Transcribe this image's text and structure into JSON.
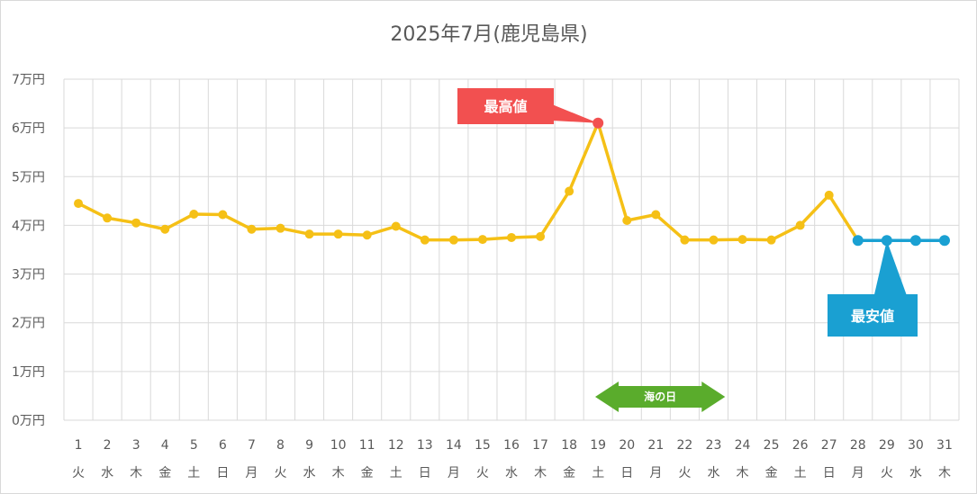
{
  "chart_data": {
    "type": "line",
    "title": "2025年7月(鹿児島県)",
    "xlabel": "",
    "ylabel": "",
    "x": [
      "1",
      "2",
      "3",
      "4",
      "5",
      "6",
      "7",
      "8",
      "9",
      "10",
      "11",
      "12",
      "13",
      "14",
      "15",
      "16",
      "17",
      "18",
      "19",
      "20",
      "21",
      "22",
      "23",
      "24",
      "25",
      "26",
      "27",
      "28",
      "29",
      "30",
      "31"
    ],
    "weekdays": [
      "火",
      "水",
      "木",
      "金",
      "土",
      "日",
      "月",
      "火",
      "水",
      "木",
      "金",
      "土",
      "日",
      "月",
      "火",
      "水",
      "木",
      "金",
      "土",
      "日",
      "月",
      "火",
      "水",
      "木",
      "金",
      "土",
      "日",
      "月",
      "火",
      "水",
      "木"
    ],
    "yticks": [
      "0万円",
      "1万円",
      "2万円",
      "3万円",
      "4万円",
      "5万円",
      "6万円",
      "7万円"
    ],
    "ylim": [
      0,
      70000
    ],
    "grid": true,
    "series": [
      {
        "values": [
          44500,
          41500,
          40500,
          39200,
          42300,
          42200,
          39200,
          39400,
          38200,
          38200,
          38000,
          39800,
          37000,
          37000,
          37100,
          37500,
          37700,
          47000,
          61000,
          41000,
          42200,
          37000,
          37000,
          37100,
          37000,
          40000,
          46200,
          36900,
          36900,
          36900,
          36900
        ],
        "color": "#f5c016",
        "min_color": "#1aa0d2"
      }
    ],
    "annotations": {
      "max_label": "最高値",
      "max_index": 18,
      "max_color": "#f25050",
      "min_label": "最安値",
      "min_index": 28,
      "min_color": "#1aa0d2",
      "min_segment_start": 27,
      "holiday_label": "海の日",
      "holiday_start_index": 19,
      "holiday_end_index": 21,
      "holiday_color": "#5aac2c"
    }
  }
}
